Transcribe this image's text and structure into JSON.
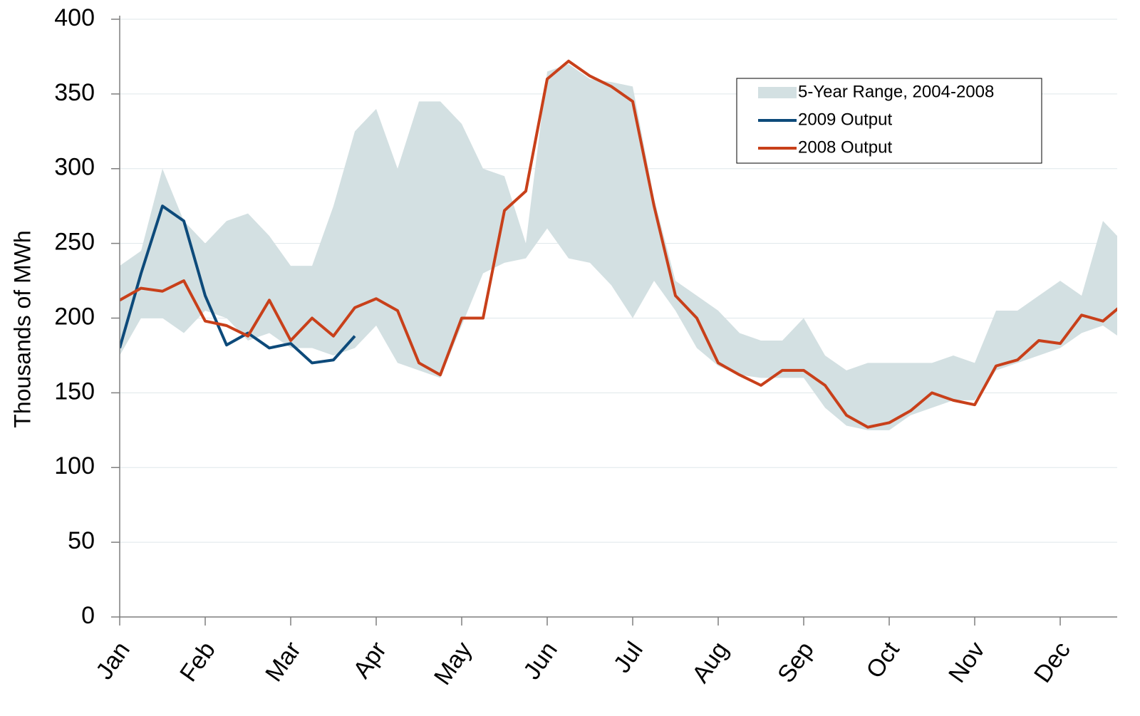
{
  "chart_data": {
    "type": "line",
    "y_label": "Thousands of MWh",
    "x": [
      "Jan",
      null,
      null,
      null,
      "Feb",
      null,
      null,
      null,
      "Mar",
      null,
      null,
      null,
      "Apr",
      null,
      null,
      null,
      "May",
      null,
      null,
      null,
      "Jun",
      null,
      null,
      null,
      "Jul",
      null,
      null,
      null,
      "Aug",
      null,
      null,
      null,
      "Sep",
      null,
      null,
      null,
      "Oct",
      null,
      null,
      null,
      "Nov",
      null,
      null,
      null,
      "Dec",
      null,
      null,
      null
    ],
    "series": [
      {
        "name": "5-Year Range, 2004-2008",
        "color": "#d3e0e2",
        "low": [
          175,
          200,
          200,
          190,
          205,
          200,
          185,
          190,
          180,
          180,
          175,
          180,
          195,
          170,
          165,
          160,
          195,
          230,
          237,
          240,
          260,
          240,
          237,
          222,
          200,
          225,
          205,
          180,
          168,
          162,
          160,
          160,
          160,
          140,
          128,
          125,
          125,
          135,
          140,
          145,
          145,
          165,
          170,
          175,
          180,
          190,
          195,
          185
        ],
        "high": [
          235,
          245,
          300,
          265,
          250,
          265,
          270,
          255,
          235,
          235,
          275,
          325,
          340,
          300,
          345,
          345,
          330,
          300,
          295,
          250,
          365,
          370,
          360,
          358,
          355,
          280,
          225,
          215,
          205,
          190,
          185,
          185,
          200,
          175,
          165,
          170,
          170,
          170,
          170,
          175,
          170,
          205,
          205,
          215,
          225,
          215,
          265,
          250
        ]
      },
      {
        "name": "2009 Output",
        "color": "#0d4a7a",
        "values": [
          180,
          230,
          275,
          265,
          215,
          182,
          190,
          180,
          183,
          170,
          172,
          188,
          null,
          null,
          null,
          null,
          null,
          null,
          null,
          null,
          null,
          null,
          null,
          null,
          null,
          null,
          null,
          null,
          null,
          null,
          null,
          null,
          null,
          null,
          null,
          null,
          null,
          null,
          null,
          null,
          null,
          null,
          null,
          null,
          null,
          null,
          null,
          null
        ]
      },
      {
        "name": "2008 Output",
        "color": "#c8401a",
        "values": [
          212,
          220,
          218,
          225,
          198,
          195,
          188,
          212,
          185,
          200,
          188,
          207,
          213,
          205,
          170,
          162,
          200,
          200,
          272,
          285,
          360,
          372,
          362,
          355,
          345,
          275,
          215,
          200,
          170,
          162,
          155,
          165,
          165,
          155,
          135,
          127,
          130,
          138,
          150,
          145,
          142,
          168,
          172,
          185,
          183,
          202,
          198,
          210
        ]
      }
    ],
    "ylim": [
      0,
      400
    ],
    "yticks": [
      0,
      50,
      100,
      150,
      200,
      250,
      300,
      350,
      400
    ],
    "grid": true,
    "legend": "upper right"
  }
}
